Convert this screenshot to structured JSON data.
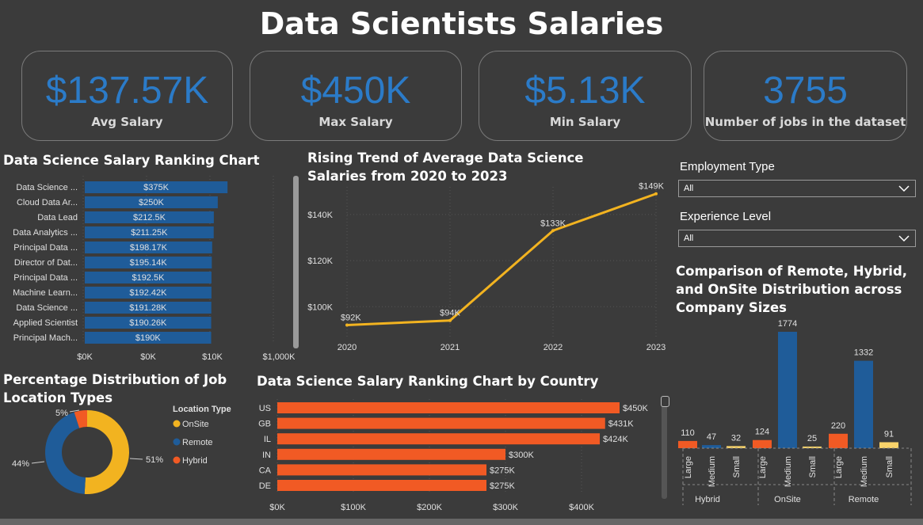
{
  "title": "Data Scientists Salaries",
  "kpis": [
    {
      "value": "$137.57K",
      "label": "Avg Salary"
    },
    {
      "value": "$450K",
      "label": "Max Salary"
    },
    {
      "value": "$5.13K",
      "label": "Min Salary"
    },
    {
      "value": "3755",
      "label": "Number of jobs in the dataset"
    }
  ],
  "colors": {
    "kpi_value": "#2b7bc8",
    "bar_blue": "#1f5c99",
    "bar_orange": "#f15a24",
    "line_yellow": "#f2b320"
  },
  "filters": {
    "employment_type": {
      "label": "Employment Type",
      "value": "All"
    },
    "experience_level": {
      "label": "Experience Level",
      "value": "All"
    }
  },
  "chart_data": [
    {
      "type": "bar",
      "orientation": "horizontal",
      "title": "Data Science Salary Ranking Chart",
      "categories": [
        "Data Science ...",
        "Cloud Data Ar...",
        "Data Lead",
        "Data Analytics ...",
        "Principal Data ...",
        "Director of Dat...",
        "Principal Data ...",
        "Machine Learn...",
        "Data Science ...",
        "Applied Scientist",
        "Principal Mach..."
      ],
      "values": [
        375000,
        250000,
        212500,
        211250,
        198170,
        195140,
        192500,
        192420,
        191280,
        190260,
        190000
      ],
      "data_labels": [
        "$375K",
        "$250K",
        "$212.5K",
        "$211.25K",
        "$198.17K",
        "$195.14K",
        "$192.5K",
        "$192.42K",
        "$191.28K",
        "$190.26K",
        "$190K"
      ],
      "x_ticks": [
        "$0K",
        "$0K",
        "$10K",
        "$1,000K"
      ],
      "x_scale": "log"
    },
    {
      "type": "line",
      "title": "Rising Trend of Average Data Science Salaries from 2020 to 2023",
      "x": [
        2020,
        2021,
        2022,
        2023
      ],
      "values": [
        92000,
        94000,
        133000,
        149000
      ],
      "data_labels": [
        "$92K",
        "$94K",
        "$133K",
        "$149K"
      ],
      "y_ticks": [
        "$100K",
        "$120K",
        "$140K"
      ],
      "ylim": [
        86000,
        152000
      ]
    },
    {
      "type": "pie",
      "subtype": "donut",
      "title": "Percentage Distribution of Job Location Types",
      "legend_title": "Location Type",
      "categories": [
        "OnSite",
        "Remote",
        "Hybrid"
      ],
      "values": [
        51,
        44,
        5
      ],
      "data_labels": [
        "51%",
        "44%",
        "5%"
      ],
      "colors": [
        "#f2b320",
        "#1f5c99",
        "#f15a24"
      ]
    },
    {
      "type": "bar",
      "orientation": "horizontal",
      "title": "Data Science Salary Ranking Chart by Country",
      "categories": [
        "US",
        "GB",
        "IL",
        "IN",
        "CA",
        "DE"
      ],
      "values": [
        450000,
        431000,
        424000,
        300000,
        275000,
        275000
      ],
      "data_labels": [
        "$450K",
        "$431K",
        "$424K",
        "$300K",
        "$275K",
        "$275K"
      ],
      "x_ticks": [
        "$0K",
        "$100K",
        "$200K",
        "$300K",
        "$400K"
      ],
      "xlim": [
        0,
        450000
      ]
    },
    {
      "type": "bar",
      "title": "Comparison of Remote, Hybrid, and OnSite Distribution across Company Sizes",
      "groups": [
        {
          "name": "Hybrid",
          "categories": [
            "Large",
            "Medium",
            "Small"
          ],
          "values": [
            110,
            47,
            32
          ]
        },
        {
          "name": "OnSite",
          "categories": [
            "Large",
            "Medium",
            "Small"
          ],
          "values": [
            124,
            1774,
            25
          ]
        },
        {
          "name": "Remote",
          "categories": [
            "Large",
            "Medium",
            "Small"
          ],
          "values": [
            220,
            1332,
            91
          ]
        }
      ],
      "category_colors": {
        "Large": "#f15a24",
        "Medium": "#1f5c99",
        "Small": "#f8d26a"
      }
    }
  ]
}
